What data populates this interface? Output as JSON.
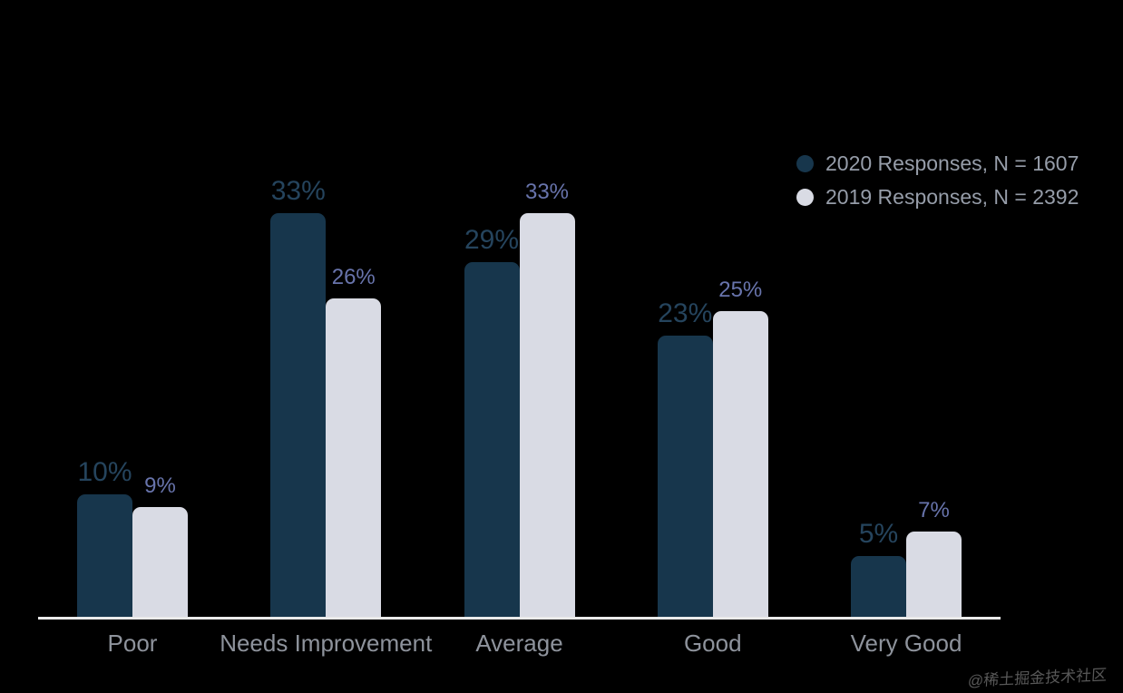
{
  "chart_data": {
    "type": "bar",
    "title": "",
    "categories": [
      "Poor",
      "Needs Improvement",
      "Average",
      "Good",
      "Very Good"
    ],
    "series": [
      {
        "name": "2020 Responses, N = 1607",
        "values": [
          10,
          33,
          29,
          23,
          5
        ],
        "color": "#17364c",
        "label_color": "#25445d"
      },
      {
        "name": "2019 Responses, N = 2392",
        "values": [
          9,
          26,
          33,
          25,
          7
        ],
        "color": "#d9dbe4",
        "label_color": "#6874ac"
      }
    ],
    "value_suffix": "%",
    "ylim": [
      0,
      35
    ],
    "grid": false,
    "legend_position": "top-right",
    "xlabel": "",
    "ylabel": ""
  },
  "watermark": {
    "text": "@稀土掘金技术社区"
  },
  "colors": {
    "background": "#000000",
    "axis_line": "#eaeaea",
    "category_label": "#8e939c",
    "legend_text": "#969da9"
  }
}
